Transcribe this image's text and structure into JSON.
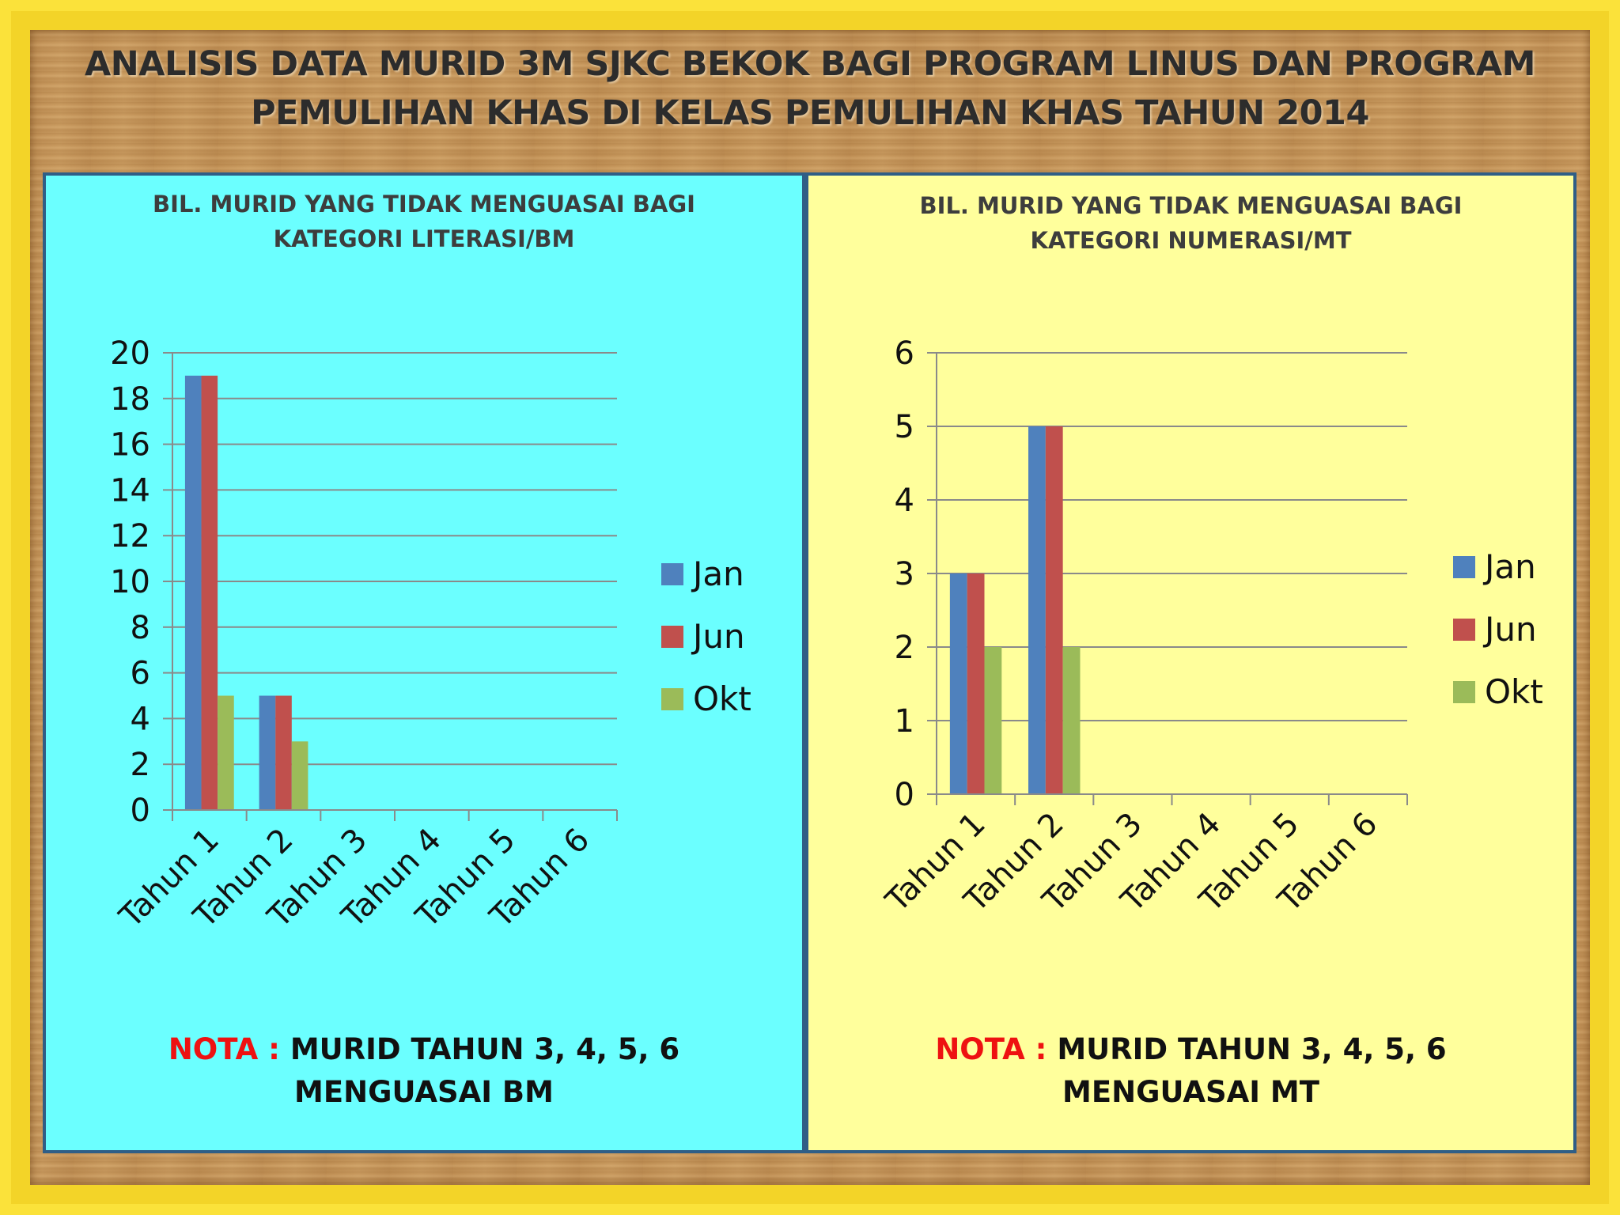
{
  "title": {
    "line1": "ANALISIS DATA MURID 3M SJKC BEKOK BAGI PROGRAM LINUS DAN PROGRAM",
    "line2": "PEMULIHAN KHAS DI KELAS PEMULIHAN KHAS TAHUN 2014"
  },
  "colors": {
    "Jan": "#4f81bd",
    "Jun": "#c0504d",
    "Okt": "#9bbb59"
  },
  "panels": [
    {
      "title_line1": "BIL. MURID YANG TIDAK MENGUASAI BAGI",
      "title_line2": "KATEGORI LITERASI/BM",
      "nota_label": "NOTA :",
      "nota_text1": "MURID TAHUN 3, 4, 5, 6",
      "nota_text2": "MENGUASAI BM"
    },
    {
      "title_line1": "BIL. MURID YANG TIDAK MENGUASAI BAGI",
      "title_line2": "KATEGORI NUMERASI/MT",
      "nota_label": "NOTA :",
      "nota_text1": "MURID TAHUN 3, 4, 5, 6",
      "nota_text2": "MENGUASAI MT"
    }
  ],
  "chart_data": [
    {
      "type": "bar",
      "title": "BIL. MURID YANG TIDAK MENGUASAI BAGI KATEGORI LITERASI/BM",
      "categories": [
        "Tahun 1",
        "Tahun 2",
        "Tahun 3",
        "Tahun 4",
        "Tahun 5",
        "Tahun 6"
      ],
      "series": [
        {
          "name": "Jan",
          "values": [
            19,
            5,
            0,
            0,
            0,
            0
          ]
        },
        {
          "name": "Jun",
          "values": [
            19,
            5,
            0,
            0,
            0,
            0
          ]
        },
        {
          "name": "Okt",
          "values": [
            5,
            3,
            0,
            0,
            0,
            0
          ]
        }
      ],
      "ylim": [
        0,
        20
      ],
      "yticks": [
        "0",
        "2",
        "4",
        "6",
        "8",
        "10",
        "12",
        "14",
        "16",
        "18",
        "20"
      ],
      "grid": true,
      "legend": "right"
    },
    {
      "type": "bar",
      "title": "BIL. MURID YANG TIDAK MENGUASAI BAGI KATEGORI NUMERASI/MT",
      "categories": [
        "Tahun 1",
        "Tahun 2",
        "Tahun 3",
        "Tahun 4",
        "Tahun 5",
        "Tahun 6"
      ],
      "series": [
        {
          "name": "Jan",
          "values": [
            3,
            5,
            0,
            0,
            0,
            0
          ]
        },
        {
          "name": "Jun",
          "values": [
            3,
            5,
            0,
            0,
            0,
            0
          ]
        },
        {
          "name": "Okt",
          "values": [
            2,
            2,
            0,
            0,
            0,
            0
          ]
        }
      ],
      "ylim": [
        0,
        6
      ],
      "yticks": [
        "0",
        "1",
        "2",
        "3",
        "4",
        "5",
        "6"
      ],
      "grid": true,
      "legend": "right"
    }
  ]
}
